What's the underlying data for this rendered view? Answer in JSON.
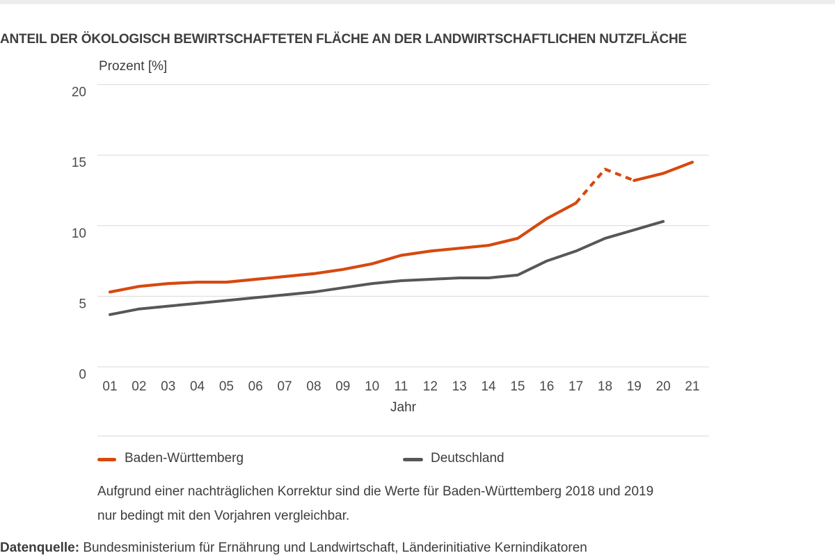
{
  "page": {
    "title": "ANTEIL DER ÖKOLOGISCH BEWIRTSCHAFTETEN FLÄCHE AN DER LANDWIRTSCHAFTLICHEN NUTZFLÄCHE",
    "footnote_line1": "Aufgrund einer nachträglichen Korrektur sind die Werte für Baden-Württemberg 2018 und 2019",
    "footnote_line2": "nur bedingt mit den Vorjahren vergleichbar.",
    "source_label": "Datenquelle:",
    "source_text": "Bundesministerium für Ernährung und Landwirtschaft, Länderinitiative Kernindikatoren"
  },
  "colors": {
    "baden_wuerttemberg": "#d6490f",
    "deutschland": "#575756",
    "gridline": "#d9d9d9",
    "text": "#3c3c3b",
    "topbar": "#ededed"
  },
  "chart_data": {
    "type": "line",
    "title": "Anteil der ökologisch bewirtschafteten Fläche an der landwirtschaftlichen Nutzfläche",
    "ylabel": "Prozent [%]",
    "xlabel": "Jahr",
    "ylim": [
      0,
      20
    ],
    "yticks": [
      0,
      5,
      10,
      15,
      20
    ],
    "grid": true,
    "legend_position": "bottom",
    "categories": [
      "01",
      "02",
      "03",
      "04",
      "05",
      "06",
      "07",
      "08",
      "09",
      "10",
      "11",
      "12",
      "13",
      "14",
      "15",
      "16",
      "17",
      "18",
      "19",
      "20",
      "21"
    ],
    "series": [
      {
        "name": "Baden-Württemberg",
        "color": "#d6490f",
        "values": [
          5.3,
          5.7,
          5.9,
          6.0,
          6.0,
          6.2,
          6.4,
          6.6,
          6.9,
          7.3,
          7.9,
          8.2,
          8.4,
          8.6,
          9.1,
          10.5,
          11.6,
          14.0,
          13.2,
          13.7,
          14.5
        ],
        "dash_between": [
          16,
          18
        ]
      },
      {
        "name": "Deutschland",
        "color": "#575756",
        "values": [
          3.7,
          4.1,
          4.3,
          4.5,
          4.7,
          4.9,
          5.1,
          5.3,
          5.6,
          5.9,
          6.1,
          6.2,
          6.3,
          6.3,
          6.5,
          7.5,
          8.2,
          9.1,
          9.7,
          10.3
        ]
      }
    ]
  }
}
